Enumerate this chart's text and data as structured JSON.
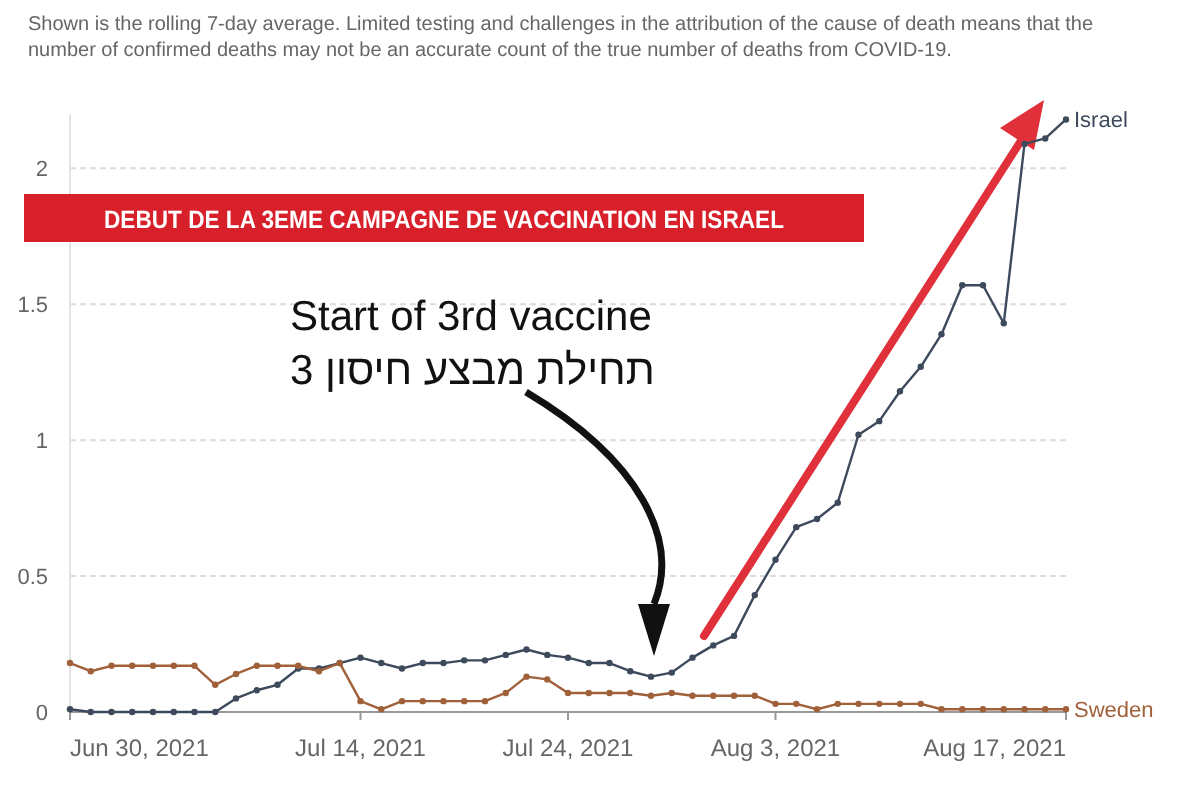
{
  "chart_data": {
    "type": "line",
    "subtitle": "Shown is the rolling 7-day average. Limited testing and challenges in the attribution of the cause of death means that the number of confirmed deaths may not be an accurate count of the true number of deaths from COVID-19.",
    "x": [
      "2021-06-30",
      "2021-07-01",
      "2021-07-02",
      "2021-07-03",
      "2021-07-04",
      "2021-07-05",
      "2021-07-06",
      "2021-07-07",
      "2021-07-08",
      "2021-07-09",
      "2021-07-10",
      "2021-07-11",
      "2021-07-12",
      "2021-07-13",
      "2021-07-14",
      "2021-07-15",
      "2021-07-16",
      "2021-07-17",
      "2021-07-18",
      "2021-07-19",
      "2021-07-20",
      "2021-07-21",
      "2021-07-22",
      "2021-07-23",
      "2021-07-24",
      "2021-07-25",
      "2021-07-26",
      "2021-07-27",
      "2021-07-28",
      "2021-07-29",
      "2021-07-30",
      "2021-07-31",
      "2021-08-01",
      "2021-08-02",
      "2021-08-03",
      "2021-08-04",
      "2021-08-05",
      "2021-08-06",
      "2021-08-07",
      "2021-08-08",
      "2021-08-09",
      "2021-08-10",
      "2021-08-11",
      "2021-08-12",
      "2021-08-13",
      "2021-08-14",
      "2021-08-15",
      "2021-08-16",
      "2021-08-17"
    ],
    "series": [
      {
        "name": "Israel",
        "color": "#3d4a5c",
        "values": [
          0.01,
          0,
          0,
          0,
          0,
          0,
          0,
          0,
          0.05,
          0.08,
          0.1,
          0.16,
          0.16,
          0.18,
          0.2,
          0.18,
          0.16,
          0.18,
          0.18,
          0.19,
          0.19,
          0.21,
          0.23,
          0.21,
          0.2,
          0.18,
          0.18,
          0.15,
          0.13,
          0.145,
          0.2,
          0.245,
          0.28,
          0.43,
          0.56,
          0.68,
          0.71,
          0.77,
          1.02,
          1.07,
          1.18,
          1.27,
          1.39,
          1.57,
          1.57,
          1.43,
          2.09,
          2.11,
          2.18
        ]
      },
      {
        "name": "Sweden",
        "color": "#a0603a",
        "values": [
          0.18,
          0.15,
          0.17,
          0.17,
          0.17,
          0.17,
          0.17,
          0.1,
          0.14,
          0.17,
          0.17,
          0.17,
          0.15,
          0.18,
          0.04,
          0.01,
          0.04,
          0.04,
          0.04,
          0.04,
          0.04,
          0.07,
          0.13,
          0.12,
          0.07,
          0.07,
          0.07,
          0.07,
          0.06,
          0.07,
          0.06,
          0.06,
          0.06,
          0.06,
          0.03,
          0.03,
          0.01,
          0.03,
          0.03,
          0.03,
          0.03,
          0.03,
          0.01,
          0.01,
          0.01,
          0.01,
          0.01,
          0.01,
          0.01
        ]
      }
    ],
    "xlim": [
      "2021-06-30",
      "2021-08-17"
    ],
    "xticks": [
      {
        "value": "2021-06-30",
        "label": "Jun 30, 2021"
      },
      {
        "value": "2021-07-14",
        "label": "Jul 14, 2021"
      },
      {
        "value": "2021-07-24",
        "label": "Jul 24, 2021"
      },
      {
        "value": "2021-08-03",
        "label": "Aug 3, 2021"
      },
      {
        "value": "2021-08-17",
        "label": "Aug 17, 2021"
      }
    ],
    "ylim": [
      0,
      2.2
    ],
    "yticks": [
      0,
      0.5,
      1,
      1.5,
      2
    ],
    "grid": "y",
    "marker": "circle",
    "line_style": "solid",
    "legend": false,
    "annotations": [
      "DEBUT DE LA 3EME CAMPAGNE DE VACCINATION EN ISRAEL",
      "Start of 3rd vaccine\nתחילת מבצע חיסון 3"
    ]
  }
}
